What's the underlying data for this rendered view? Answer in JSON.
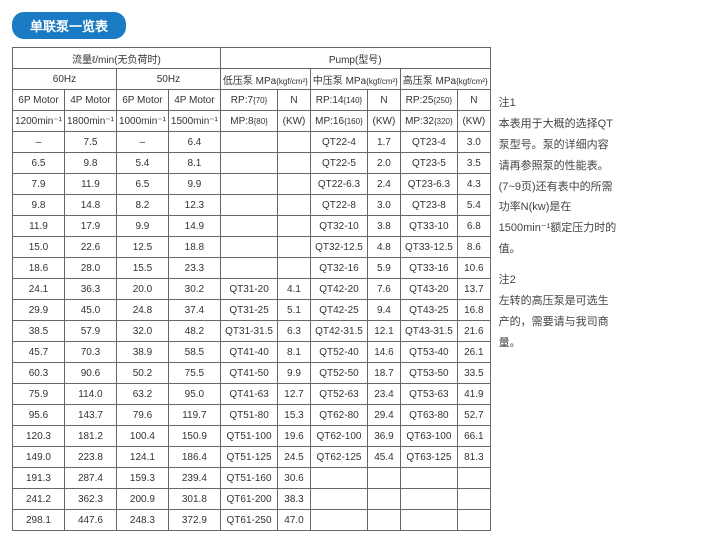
{
  "title": "单联泵一览表",
  "header": {
    "flow_group": "流量ℓ/min(无负荷时)",
    "pump_group": "Pump(型号)",
    "hz60": "60Hz",
    "hz50": "50Hz",
    "low": "低压泵 MPa",
    "low_sub": "{kgf/cm²}",
    "mid": "中压泵 MPa",
    "mid_sub": "{kgf/cm²}",
    "high": "高压泵 MPa",
    "high_sub": "{kgf/cm²}",
    "motor6p": "6P Motor",
    "motor4p": "4P Motor",
    "rpm1200": "1200min⁻¹",
    "rpm1800": "1800min⁻¹",
    "rpm1000": "1000min⁻¹",
    "rpm1500": "1500min⁻¹",
    "rp7": "RP:7",
    "rp7s": "{70}",
    "mp8": "MP:8",
    "mp8s": "{80}",
    "rp14": "RP:14",
    "rp14s": "{140}",
    "mp16": "MP:16",
    "mp16s": "{160}",
    "rp25": "RP:25",
    "rp25s": "{250}",
    "mp32": "MP:32",
    "mp32s": "{320}",
    "N": "N",
    "KW": "(KW)"
  },
  "rows": [
    [
      "–",
      "7.5",
      "–",
      "6.4",
      "",
      "",
      "QT22-4",
      "1.7",
      "QT23-4",
      "3.0"
    ],
    [
      "6.5",
      "9.8",
      "5.4",
      "8.1",
      "",
      "",
      "QT22-5",
      "2.0",
      "QT23-5",
      "3.5"
    ],
    [
      "7.9",
      "11.9",
      "6.5",
      "9.9",
      "",
      "",
      "QT22-6.3",
      "2.4",
      "QT23-6.3",
      "4.3"
    ],
    [
      "9.8",
      "14.8",
      "8.2",
      "12.3",
      "",
      "",
      "QT22-8",
      "3.0",
      "QT23-8",
      "5.4"
    ],
    [
      "11.9",
      "17.9",
      "9.9",
      "14.9",
      "",
      "",
      "QT32-10",
      "3.8",
      "QT33-10",
      "6.8"
    ],
    [
      "15.0",
      "22.6",
      "12.5",
      "18.8",
      "",
      "",
      "QT32-12.5",
      "4.8",
      "QT33-12.5",
      "8.6"
    ],
    [
      "18.6",
      "28.0",
      "15.5",
      "23.3",
      "",
      "",
      "QT32-16",
      "5.9",
      "QT33-16",
      "10.6"
    ],
    [
      "24.1",
      "36.3",
      "20.0",
      "30.2",
      "QT31-20",
      "4.1",
      "QT42-20",
      "7.6",
      "QT43-20",
      "13.7"
    ],
    [
      "29.9",
      "45.0",
      "24.8",
      "37.4",
      "QT31-25",
      "5.1",
      "QT42-25",
      "9.4",
      "QT43-25",
      "16.8"
    ],
    [
      "38.5",
      "57.9",
      "32.0",
      "48.2",
      "QT31-31.5",
      "6.3",
      "QT42-31.5",
      "12.1",
      "QT43-31.5",
      "21.6"
    ],
    [
      "45.7",
      "70.3",
      "38.9",
      "58.5",
      "QT41-40",
      "8.1",
      "QT52-40",
      "14.6",
      "QT53-40",
      "26.1"
    ],
    [
      "60.3",
      "90.6",
      "50.2",
      "75.5",
      "QT41-50",
      "9.9",
      "QT52-50",
      "18.7",
      "QT53-50",
      "33.5"
    ],
    [
      "75.9",
      "114.0",
      "63.2",
      "95.0",
      "QT41-63",
      "12.7",
      "QT52-63",
      "23.4",
      "QT53-63",
      "41.9"
    ],
    [
      "95.6",
      "143.7",
      "79.6",
      "119.7",
      "QT51-80",
      "15.3",
      "QT62-80",
      "29.4",
      "QT63-80",
      "52.7"
    ],
    [
      "120.3",
      "181.2",
      "100.4",
      "150.9",
      "QT51-100",
      "19.6",
      "QT62-100",
      "36.9",
      "QT63-100",
      "66.1"
    ],
    [
      "149.0",
      "223.8",
      "124.1",
      "186.4",
      "QT51-125",
      "24.5",
      "QT62-125",
      "45.4",
      "QT63-125",
      "81.3"
    ],
    [
      "191.3",
      "287.4",
      "159.3",
      "239.4",
      "QT51-160",
      "30.6",
      "",
      "",
      "",
      ""
    ],
    [
      "241.2",
      "362.3",
      "200.9",
      "301.8",
      "QT61-200",
      "38.3",
      "",
      "",
      "",
      ""
    ],
    [
      "298.1",
      "447.6",
      "248.3",
      "372.9",
      "QT61-250",
      "47.0",
      "",
      "",
      "",
      ""
    ]
  ],
  "notes": {
    "n1_title": "注1",
    "n1_body": "本表用于大概的选择QT泵型号。泵的详细内容请再参照泵的性能表。(7~9页)还有表中的所需功率N(kw)是在1500min⁻¹额定压力时的值。",
    "n2_title": "注2",
    "n2_body": "左转的高压泵是可选生产的，需要请与我司商量。"
  }
}
